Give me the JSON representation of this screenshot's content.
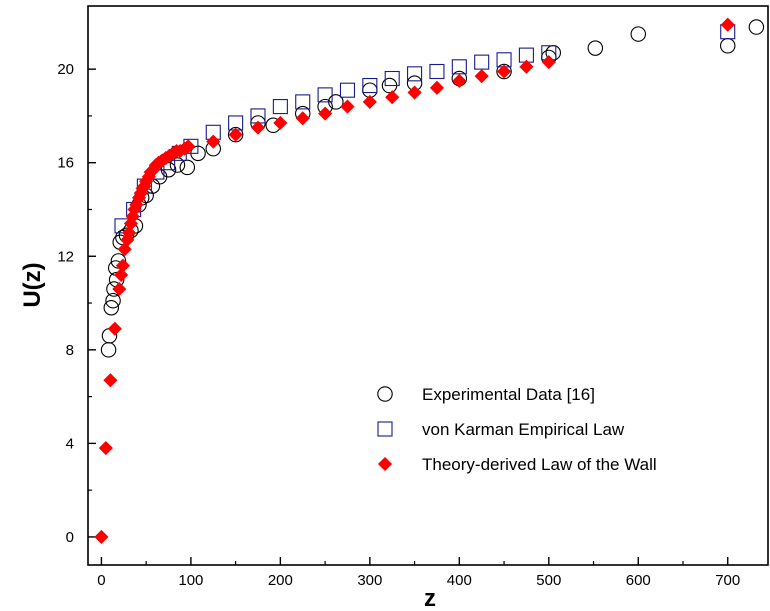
{
  "chart_data": {
    "type": "scatter",
    "title": "",
    "xlabel": "z",
    "ylabel": "U(z)",
    "xlim": [
      -15,
      745
    ],
    "ylim": [
      -1.2,
      22.7
    ],
    "x_ticks": [
      0,
      100,
      200,
      300,
      400,
      500,
      600,
      700
    ],
    "y_ticks": [
      0,
      4,
      8,
      12,
      16,
      20
    ],
    "legend_position": "lower-right",
    "grid": false,
    "series": [
      {
        "name": "Experimental Data [16]",
        "marker": "open-circle",
        "color": "#000000",
        "points": [
          [
            8,
            8.0
          ],
          [
            9,
            8.6
          ],
          [
            11,
            9.8
          ],
          [
            13,
            10.1
          ],
          [
            14,
            10.6
          ],
          [
            16,
            11.5
          ],
          [
            17,
            11.0
          ],
          [
            19,
            11.8
          ],
          [
            21,
            12.6
          ],
          [
            24,
            12.8
          ],
          [
            28,
            12.9
          ],
          [
            33,
            13.1
          ],
          [
            38,
            13.3
          ],
          [
            42,
            14.2
          ],
          [
            45,
            14.5
          ],
          [
            50,
            14.6
          ],
          [
            57,
            15.0
          ],
          [
            65,
            15.4
          ],
          [
            75,
            15.7
          ],
          [
            85,
            15.9
          ],
          [
            96,
            15.8
          ],
          [
            108,
            16.4
          ],
          [
            125,
            16.6
          ],
          [
            150,
            17.2
          ],
          [
            175,
            17.7
          ],
          [
            192,
            17.6
          ],
          [
            225,
            18.1
          ],
          [
            250,
            18.4
          ],
          [
            262,
            18.6
          ],
          [
            300,
            19.1
          ],
          [
            322,
            19.3
          ],
          [
            350,
            19.4
          ],
          [
            400,
            19.6
          ],
          [
            450,
            19.9
          ],
          [
            500,
            20.5
          ],
          [
            505,
            20.7
          ],
          [
            552,
            20.9
          ],
          [
            600,
            21.5
          ],
          [
            700,
            21.0
          ],
          [
            732,
            21.8
          ]
        ]
      },
      {
        "name": "von Karman Empirical Law",
        "marker": "open-square",
        "color": "#1a1a8c",
        "points": [
          [
            23,
            13.3
          ],
          [
            36,
            14.0
          ],
          [
            48,
            15.0
          ],
          [
            62,
            15.6
          ],
          [
            74,
            16.0
          ],
          [
            87,
            16.4
          ],
          [
            100,
            16.7
          ],
          [
            125,
            17.3
          ],
          [
            150,
            17.7
          ],
          [
            175,
            18.0
          ],
          [
            200,
            18.4
          ],
          [
            225,
            18.6
          ],
          [
            250,
            18.9
          ],
          [
            275,
            19.1
          ],
          [
            300,
            19.3
          ],
          [
            325,
            19.6
          ],
          [
            350,
            19.8
          ],
          [
            375,
            19.9
          ],
          [
            400,
            20.1
          ],
          [
            425,
            20.3
          ],
          [
            450,
            20.4
          ],
          [
            475,
            20.6
          ],
          [
            500,
            20.7
          ],
          [
            700,
            21.6
          ]
        ]
      },
      {
        "name": "Theory-derived Law of the Wall",
        "marker": "filled-diamond",
        "color": "#ff0000",
        "points": [
          [
            0,
            0.0
          ],
          [
            5,
            3.8
          ],
          [
            10,
            6.7
          ],
          [
            15,
            8.9
          ],
          [
            20,
            10.6
          ],
          [
            22,
            11.2
          ],
          [
            24,
            11.6
          ],
          [
            26,
            12.3
          ],
          [
            29,
            12.7
          ],
          [
            31,
            13.0
          ],
          [
            33,
            13.4
          ],
          [
            35,
            13.7
          ],
          [
            37,
            14.0
          ],
          [
            39,
            14.2
          ],
          [
            42,
            14.5
          ],
          [
            44,
            14.7
          ],
          [
            46,
            14.9
          ],
          [
            48,
            15.0
          ],
          [
            50,
            15.2
          ],
          [
            53,
            15.4
          ],
          [
            55,
            15.6
          ],
          [
            58,
            15.7
          ],
          [
            61,
            15.9
          ],
          [
            64,
            16.0
          ],
          [
            68,
            16.1
          ],
          [
            72,
            16.2
          ],
          [
            76,
            16.3
          ],
          [
            80,
            16.4
          ],
          [
            84,
            16.5
          ],
          [
            88,
            16.5
          ],
          [
            93,
            16.6
          ],
          [
            97,
            16.7
          ],
          [
            125,
            16.9
          ],
          [
            150,
            17.2
          ],
          [
            175,
            17.5
          ],
          [
            200,
            17.7
          ],
          [
            225,
            17.9
          ],
          [
            250,
            18.1
          ],
          [
            275,
            18.4
          ],
          [
            300,
            18.6
          ],
          [
            325,
            18.8
          ],
          [
            350,
            19.0
          ],
          [
            375,
            19.2
          ],
          [
            400,
            19.5
          ],
          [
            425,
            19.7
          ],
          [
            450,
            19.9
          ],
          [
            475,
            20.1
          ],
          [
            500,
            20.3
          ],
          [
            700,
            21.9
          ]
        ]
      }
    ]
  }
}
